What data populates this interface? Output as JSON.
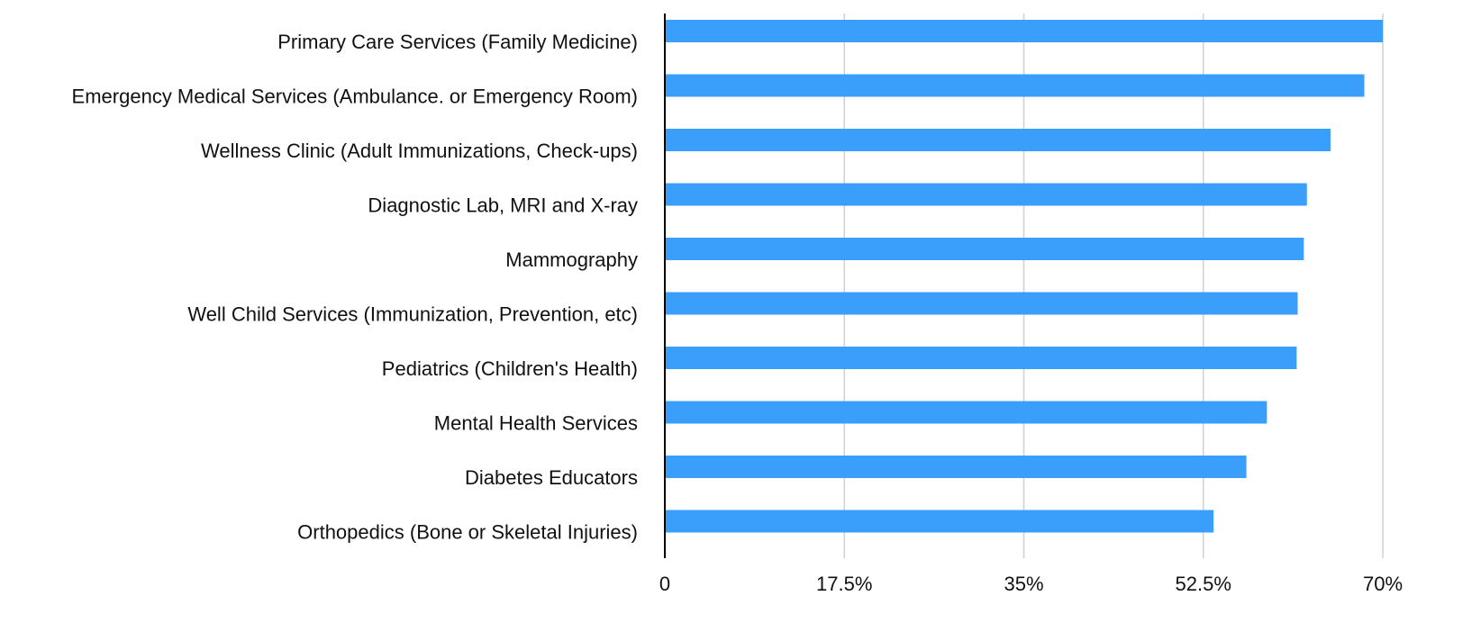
{
  "chart_data": {
    "type": "hbar",
    "categories": [
      "Primary Care Services (Family Medicine)",
      "Emergency Medical Services (Ambulance. or Emergency Room)",
      "Wellness Clinic (Adult Immunizations, Check-ups)",
      "Diagnostic Lab, MRI and X-ray",
      "Mammography",
      "Well Child Services (Immunization, Prevention, etc)",
      "Pediatrics (Children's Health)",
      "Mental Health Services",
      "Diabetes Educators",
      "Orthopedics (Bone or Skeletal Injuries)"
    ],
    "values": [
      70,
      68.2,
      64.9,
      62.6,
      62.3,
      61.7,
      61.6,
      58.7,
      56.7,
      53.5
    ],
    "color": "#3a9ffb",
    "xlim": [
      0,
      70
    ],
    "xticks": [
      0,
      {
        "value": 17.5,
        "label": "17.5%"
      },
      {
        "value": 35,
        "label": "35%"
      },
      {
        "value": 52.5,
        "label": "52.5%"
      },
      {
        "value": 70,
        "label": "70%"
      }
    ],
    "grid": true
  }
}
